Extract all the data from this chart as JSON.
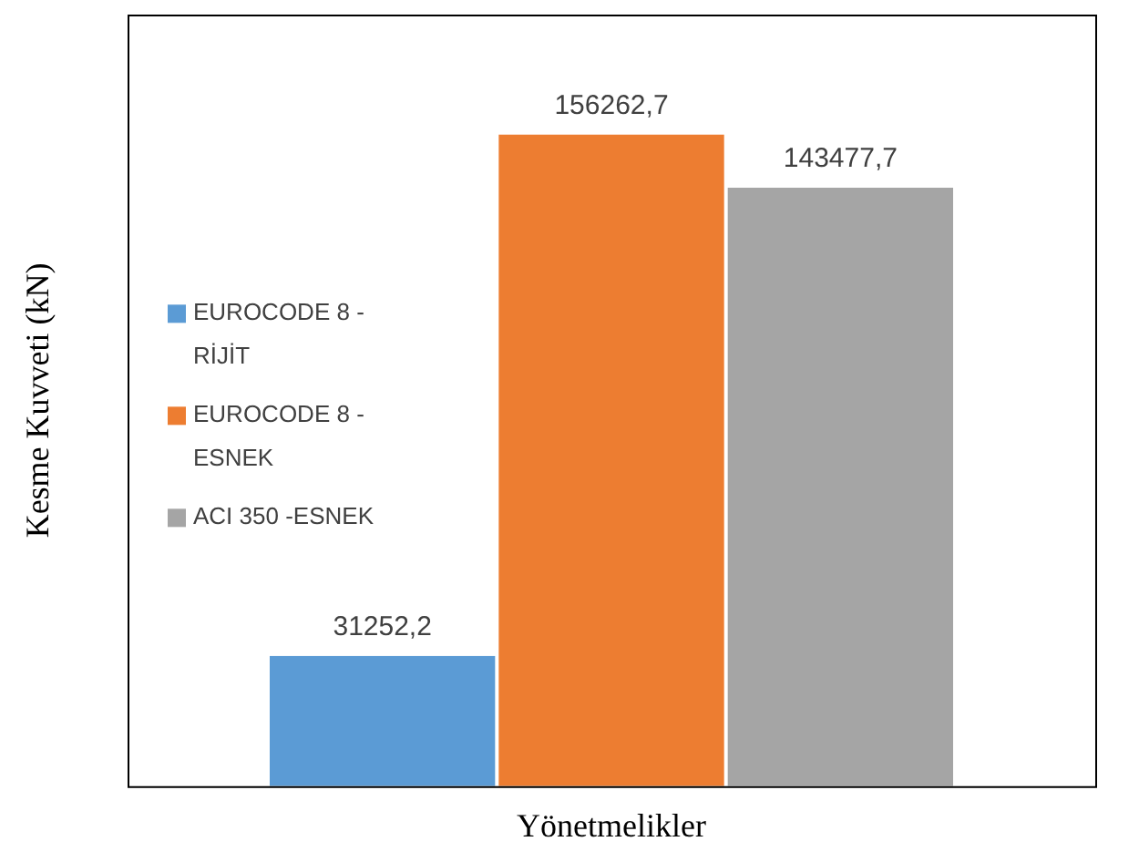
{
  "chart_data": {
    "type": "bar",
    "xlabel": "Yönetmelikler",
    "ylabel": "Kesme Kuvveti (kN)",
    "categories": [
      null
    ],
    "ylim": [
      0,
      185000
    ],
    "legend": "left",
    "series": [
      {
        "name": "EUROCODE 8 - RİJİT",
        "color": "#5b9bd5",
        "values": [
          31252.2
        ],
        "value_labels": [
          "31252,2"
        ]
      },
      {
        "name": "EUROCODE 8 - ESNEK",
        "color": "#ed7d31",
        "values": [
          156262.7
        ],
        "value_labels": [
          "156262,7"
        ]
      },
      {
        "name": "ACI 350 -ESNEK",
        "color": "#a5a5a5",
        "values": [
          143477.7
        ],
        "value_labels": [
          "143477,7"
        ]
      }
    ]
  }
}
